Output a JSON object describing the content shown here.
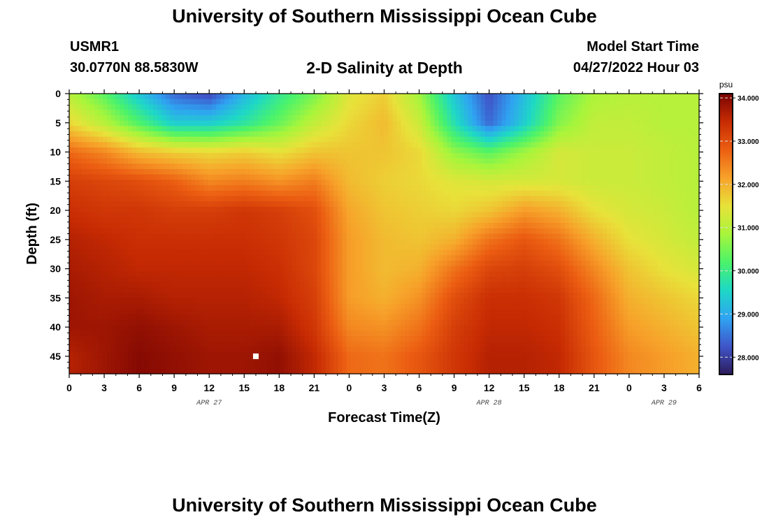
{
  "header": {
    "title": "University of Southern Mississippi Ocean Cube",
    "station": "USMR1",
    "coords": "30.0770N  88.5830W",
    "subtitle": "2-D Salinity at Depth",
    "model_start_label": "Model Start Time",
    "model_start_value": "04/27/2022 Hour 03"
  },
  "footer": {
    "title": "University of Southern Mississippi Ocean Cube"
  },
  "chart_data": {
    "type": "heatmap",
    "xlabel": "Forecast Time(Z)",
    "ylabel": "Depth (ft)",
    "x_range_hours": [
      0,
      54
    ],
    "ylim": [
      0,
      48
    ],
    "y_ticks": [
      0,
      5,
      10,
      15,
      20,
      25,
      30,
      35,
      40,
      45
    ],
    "x_tick_labels": [
      "0",
      "3",
      "6",
      "9",
      "12",
      "15",
      "18",
      "21",
      "0",
      "3",
      "6",
      "9",
      "12",
      "15",
      "18",
      "21",
      "0",
      "3",
      "6"
    ],
    "date_labels": [
      {
        "text": "APR 27",
        "hour": 12
      },
      {
        "text": "APR 28",
        "hour": 36
      },
      {
        "text": "APR 29",
        "hour": 51
      }
    ],
    "colorbar": {
      "unit": "psu",
      "min": 27.6,
      "max": 34.1,
      "ticks": [
        "28.000",
        "29.000",
        "30.000",
        "31.000",
        "32.000",
        "33.000",
        "34.000"
      ],
      "colormap": [
        "#2c1b5a",
        "#3f55c9",
        "#2fa3f2",
        "#1ed8c6",
        "#4bf36a",
        "#a8f53b",
        "#e8e23a",
        "#f7a22a",
        "#ec5e12",
        "#c72b03",
        "#7a0403"
      ]
    },
    "depths": [
      0,
      5,
      10,
      15,
      20,
      25,
      30,
      35,
      40,
      45,
      48
    ],
    "hours": [
      0,
      3,
      6,
      9,
      12,
      15,
      18,
      21,
      24,
      27,
      30,
      33,
      36,
      39,
      42,
      45,
      48,
      51,
      54
    ],
    "values": [
      [
        31.0,
        30.3,
        29.3,
        28.4,
        28.1,
        29.1,
        29.9,
        30.5,
        31.4,
        31.7,
        30.8,
        29.3,
        28.2,
        29.2,
        30.3,
        30.9,
        31.0,
        31.0,
        31.0
      ],
      [
        31.6,
        31.0,
        30.2,
        29.4,
        29.4,
        29.8,
        30.4,
        31.1,
        31.6,
        31.9,
        31.2,
        29.7,
        28.4,
        29.4,
        30.6,
        31.1,
        31.1,
        31.0,
        31.0
      ],
      [
        32.7,
        32.4,
        31.9,
        31.7,
        31.6,
        31.7,
        31.5,
        31.8,
        31.8,
        31.8,
        31.6,
        30.7,
        30.3,
        30.8,
        31.3,
        31.2,
        31.2,
        31.1,
        31.0
      ],
      [
        33.2,
        33.1,
        33.0,
        32.8,
        32.4,
        32.5,
        32.3,
        32.5,
        31.9,
        31.7,
        31.6,
        31.4,
        31.3,
        31.3,
        31.3,
        31.2,
        31.2,
        31.1,
        31.0
      ],
      [
        33.4,
        33.3,
        33.3,
        33.2,
        33.2,
        33.3,
        33.2,
        33.0,
        32.1,
        31.8,
        31.7,
        31.6,
        31.8,
        32.2,
        32.0,
        31.5,
        31.3,
        31.2,
        31.0
      ],
      [
        33.6,
        33.5,
        33.4,
        33.4,
        33.4,
        33.4,
        33.3,
        33.1,
        32.2,
        31.9,
        31.8,
        32.0,
        32.6,
        32.9,
        32.6,
        32.0,
        31.5,
        31.3,
        31.1
      ],
      [
        33.7,
        33.6,
        33.5,
        33.5,
        33.5,
        33.5,
        33.4,
        33.1,
        32.2,
        31.9,
        32.0,
        32.6,
        33.1,
        33.2,
        33.0,
        32.4,
        31.8,
        31.5,
        31.3
      ],
      [
        33.8,
        33.7,
        33.7,
        33.6,
        33.6,
        33.6,
        33.5,
        33.2,
        32.2,
        32.0,
        32.3,
        33.0,
        33.4,
        33.4,
        33.3,
        32.7,
        32.0,
        31.8,
        31.6
      ],
      [
        33.8,
        33.8,
        33.9,
        33.8,
        33.7,
        33.7,
        33.7,
        33.3,
        32.4,
        32.3,
        32.6,
        33.2,
        33.5,
        33.5,
        33.4,
        32.8,
        32.2,
        32.0,
        31.8
      ],
      [
        33.6,
        33.8,
        34.0,
        33.9,
        33.8,
        33.8,
        33.9,
        33.5,
        32.7,
        32.6,
        32.9,
        33.3,
        33.6,
        33.6,
        33.5,
        32.9,
        32.4,
        32.2,
        32.0
      ],
      [
        33.6,
        33.8,
        34.0,
        33.9,
        33.8,
        33.8,
        33.9,
        33.5,
        32.7,
        32.6,
        32.9,
        33.3,
        33.6,
        33.6,
        33.5,
        32.9,
        32.4,
        32.2,
        32.0
      ]
    ],
    "marker": {
      "hour": 16,
      "depth": 45
    }
  }
}
